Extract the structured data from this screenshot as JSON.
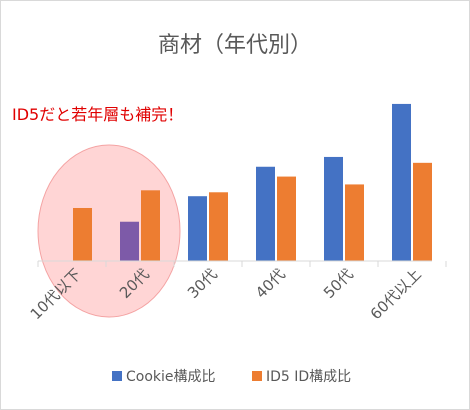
{
  "chart_data": {
    "type": "bar",
    "title": "商材（年代別）",
    "annotation": "ID5だと若年層も補完！",
    "categories": [
      "10代以下",
      "20代",
      "30代",
      "40代",
      "50代",
      "60代以上"
    ],
    "series": [
      {
        "name": "Cookie構成比",
        "color": "#4472C4",
        "values": [
          0,
          2.0,
          3.3,
          4.8,
          5.3,
          8.0
        ]
      },
      {
        "name": "ID5 ID構成比",
        "color": "#ED7D31",
        "values": [
          2.7,
          3.6,
          3.5,
          4.3,
          3.9,
          5.0
        ]
      }
    ],
    "ylim": [
      0,
      8.2
    ],
    "grid": false,
    "legend_position": "bottom",
    "highlight": {
      "category_range": [
        "10代以下",
        "20代"
      ],
      "fill": "#FFC7C7",
      "stroke": "#F4A3A3"
    },
    "overlay_color": "#7d5aa8",
    "annotation_color": "#E00000",
    "axis_color": "#d9d9d9",
    "text_color": "#595959"
  }
}
